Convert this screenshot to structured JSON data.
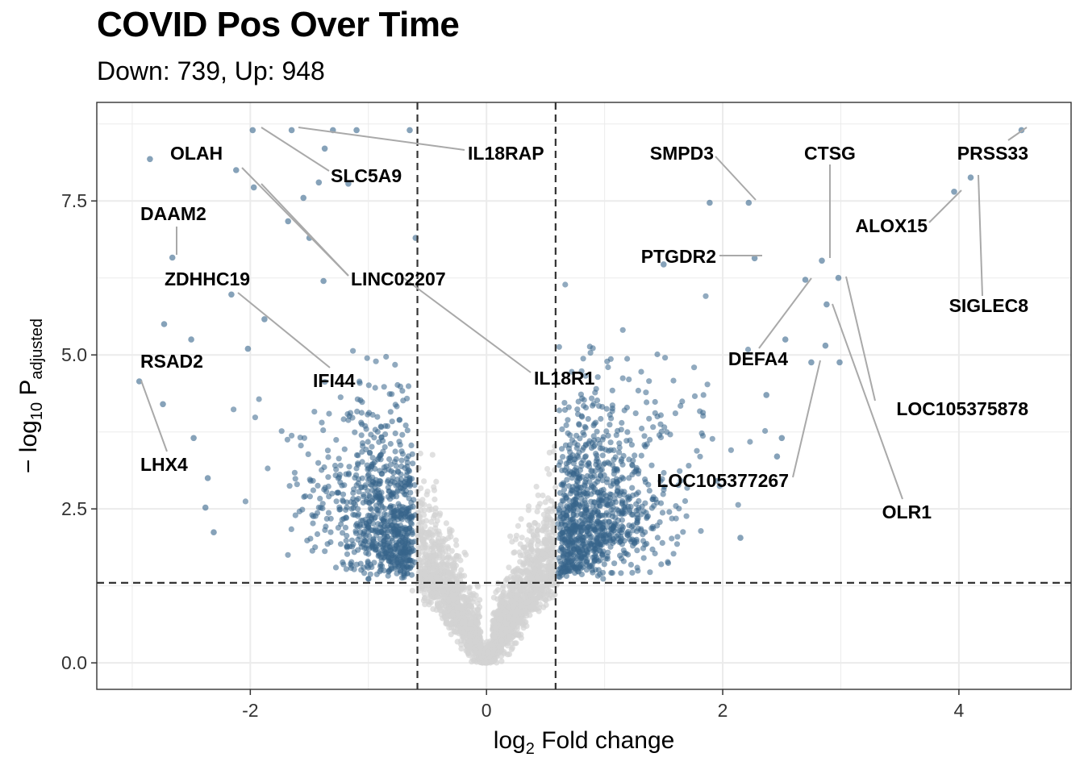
{
  "chart_data": {
    "type": "scatter",
    "subtype": "volcano",
    "title": "COVID Pos Over Time",
    "subtitle": "Down: 739, Up: 948",
    "xlabel": {
      "base": "log",
      "sub": "2",
      "rest": " Fold change"
    },
    "ylabel": {
      "prefix": "− log",
      "sub1": "10",
      "mid": " P",
      "sub2": "adjusted"
    },
    "xlim": [
      -3.3,
      4.95
    ],
    "ylim": [
      -0.43,
      9.1
    ],
    "xticks": [
      -2,
      0,
      2,
      4
    ],
    "xtick_labels": [
      "-2",
      "0",
      "2",
      "4"
    ],
    "yticks": [
      0,
      2.5,
      5,
      7.5
    ],
    "ytick_labels": [
      "0.0",
      "2.5",
      "5.0",
      "7.5"
    ],
    "thresholds": {
      "log2fc_low": -0.585,
      "log2fc_high": 0.585,
      "neg_log10_padj": 1.3
    },
    "colors": {
      "significant": "#36648b",
      "nonsignificant": "#d3d3d3",
      "grid": "#ebebeb",
      "label_line": "#a9a9a9",
      "threshold_line": "#333333"
    },
    "counts": {
      "down": 739,
      "up": 948
    },
    "highlight_points": [
      {
        "x": -1.98,
        "y": 8.65
      },
      {
        "x": -1.65,
        "y": 8.65
      },
      {
        "x": -1.3,
        "y": 8.65
      },
      {
        "x": -1.1,
        "y": 8.65
      },
      {
        "x": -0.65,
        "y": 8.65
      },
      {
        "x": -2.85,
        "y": 8.18
      },
      {
        "x": -1.37,
        "y": 8.35
      },
      {
        "x": -2.12,
        "y": 8.0
      },
      {
        "x": -1.97,
        "y": 7.72
      },
      {
        "x": -1.42,
        "y": 7.8
      },
      {
        "x": -1.55,
        "y": 7.55
      },
      {
        "x": -1.17,
        "y": 7.78
      },
      {
        "x": -1.68,
        "y": 7.17
      },
      {
        "x": -1.5,
        "y": 6.9
      },
      {
        "x": -0.6,
        "y": 6.9
      },
      {
        "x": -2.66,
        "y": 6.58
      },
      {
        "x": -1.38,
        "y": 6.2
      },
      {
        "x": -2.16,
        "y": 5.98
      },
      {
        "x": -1.88,
        "y": 5.58
      },
      {
        "x": -2.73,
        "y": 5.5
      },
      {
        "x": -2.5,
        "y": 5.25
      },
      {
        "x": -2.02,
        "y": 5.1
      },
      {
        "x": -2.94,
        "y": 4.57
      },
      {
        "x": -2.74,
        "y": 4.2
      },
      {
        "x": -2.48,
        "y": 3.65
      },
      {
        "x": -2.36,
        "y": 3.0
      },
      {
        "x": -2.38,
        "y": 2.52
      },
      {
        "x": -2.31,
        "y": 2.12
      },
      {
        "x": 1.89,
        "y": 7.47
      },
      {
        "x": 2.22,
        "y": 7.47
      },
      {
        "x": 2.27,
        "y": 6.57
      },
      {
        "x": 1.5,
        "y": 6.47
      },
      {
        "x": 2.84,
        "y": 6.53
      },
      {
        "x": 2.7,
        "y": 6.22
      },
      {
        "x": 2.98,
        "y": 6.25
      },
      {
        "x": 2.88,
        "y": 5.82
      },
      {
        "x": 2.87,
        "y": 5.15
      },
      {
        "x": 2.75,
        "y": 4.88
      },
      {
        "x": 2.99,
        "y": 4.88
      },
      {
        "x": 3.96,
        "y": 7.65
      },
      {
        "x": 4.1,
        "y": 7.88
      },
      {
        "x": 4.53,
        "y": 8.65
      },
      {
        "x": 2.15,
        "y": 2.03
      },
      {
        "x": 2.5,
        "y": 3.65
      },
      {
        "x": 2.46,
        "y": 3.35
      },
      {
        "x": 2.37,
        "y": 4.35
      },
      {
        "x": 2.53,
        "y": 5.25
      }
    ],
    "labels": [
      {
        "text": "OLAH",
        "anchor": "start"
      },
      {
        "text": "SLC5A9",
        "anchor": "start"
      },
      {
        "text": "IL18RAP",
        "anchor": "start"
      },
      {
        "text": "DAAM2",
        "anchor": "start"
      },
      {
        "text": "ZDHHC19",
        "anchor": "start"
      },
      {
        "text": "LINC02207",
        "anchor": "start"
      },
      {
        "text": "RSAD2",
        "anchor": "start"
      },
      {
        "text": "IFI44",
        "anchor": "start"
      },
      {
        "text": "LHX4",
        "anchor": "start"
      },
      {
        "text": "IL18R1",
        "anchor": "start"
      },
      {
        "text": "SMPD3",
        "anchor": "end"
      },
      {
        "text": "CTSG",
        "anchor": "middle"
      },
      {
        "text": "PRSS33",
        "anchor": "end"
      },
      {
        "text": "ALOX15",
        "anchor": "end"
      },
      {
        "text": "PTGDR2",
        "anchor": "end"
      },
      {
        "text": "SIGLEC8",
        "anchor": "end"
      },
      {
        "text": "DEFA4",
        "anchor": "end"
      },
      {
        "text": "LOC105375878",
        "anchor": "end"
      },
      {
        "text": "LOC105377267",
        "anchor": "end"
      },
      {
        "text": "OLR1",
        "anchor": "end"
      }
    ]
  }
}
